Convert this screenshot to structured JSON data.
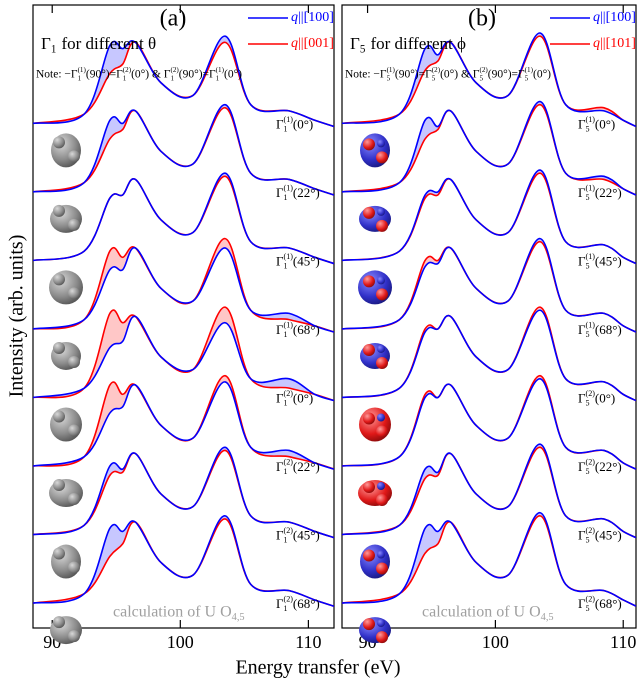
{
  "figure": {
    "ylabel": "Intensity (arb. units)",
    "xlabel": "Energy transfer (eV)"
  },
  "chart_data": [
    {
      "type": "line",
      "panel": "(a)",
      "title": {
        "symbol": "Γ",
        "sub": "1",
        "text": "for different θ"
      },
      "note": [
        "Note: −Γ",
        {
          "sub": "1",
          "sup": "(1)"
        },
        "(90°)=Γ",
        {
          "sub": "1",
          "sup": "(2)"
        },
        "(0°) & Γ",
        {
          "sub": "1",
          "sup": "(2)"
        },
        "(90°)=Γ",
        {
          "sub": "1",
          "sup": "(1)"
        },
        "(0°)"
      ],
      "legend": [
        {
          "symbol": "q",
          "direction": "||[100]",
          "color": "#0000ff"
        },
        {
          "symbol": "q",
          "direction": "||[001]",
          "color": "#ff0000"
        }
      ],
      "annotation": {
        "text": "calculation of U O",
        "sub": "4,5"
      },
      "xlim": [
        88.5,
        112
      ],
      "xticks": [
        90,
        100,
        110
      ],
      "ylim": [
        0,
        10
      ],
      "x": [
        88.5,
        92.5,
        94.5,
        95.5,
        96.5,
        98.5,
        101,
        103.5,
        105.5,
        108.5,
        110.5,
        112
      ],
      "spectra": [
        {
          "label": {
            "symbol": "Γ",
            "sub": "1",
            "sup": "(1)",
            "arg": "(0°)"
          },
          "lines": [
            [
              8.1,
              8.25,
              9.35,
              9.3,
              9.4,
              8.75,
              8.55,
              9.5,
              8.4,
              8.3,
              8.15,
              8.05
            ],
            [
              8.1,
              8.25,
              8.9,
              9.05,
              9.4,
              8.75,
              8.55,
              9.4,
              8.4,
              8.3,
              8.15,
              8.05
            ]
          ]
        },
        {
          "label": {
            "symbol": "Γ",
            "sub": "1",
            "sup": "(1)",
            "arg": "(22°)"
          },
          "lines": [
            [
              7.0,
              7.15,
              8.15,
              8.1,
              8.3,
              7.65,
              7.45,
              8.4,
              7.3,
              7.2,
              7.05,
              6.95
            ],
            [
              7.0,
              7.15,
              7.85,
              8.0,
              8.3,
              7.65,
              7.45,
              8.35,
              7.3,
              7.2,
              7.05,
              6.95
            ]
          ]
        },
        {
          "label": {
            "symbol": "Γ",
            "sub": "1",
            "sup": "(1)",
            "arg": "(45°)"
          },
          "lines": [
            [
              5.9,
              6.05,
              6.9,
              6.95,
              7.2,
              6.55,
              6.35,
              7.3,
              6.2,
              6.1,
              5.95,
              5.85
            ],
            [
              5.9,
              6.05,
              6.9,
              6.95,
              7.2,
              6.55,
              6.35,
              7.25,
              6.2,
              6.1,
              5.95,
              5.85
            ]
          ]
        },
        {
          "label": {
            "symbol": "Γ",
            "sub": "1",
            "sup": "(1)",
            "arg": "(68°)"
          },
          "lines": [
            [
              4.8,
              4.95,
              5.75,
              5.75,
              6.1,
              5.45,
              5.25,
              6.1,
              5.1,
              5.05,
              4.85,
              4.75
            ],
            [
              4.8,
              4.95,
              6.05,
              5.95,
              6.1,
              5.45,
              5.25,
              6.25,
              5.1,
              4.95,
              4.85,
              4.75
            ]
          ]
        },
        {
          "label": {
            "symbol": "Γ",
            "sub": "1",
            "sup": "(2)",
            "arg": "(0°)"
          },
          "lines": [
            [
              3.7,
              3.85,
              4.5,
              4.6,
              5.0,
              4.35,
              4.15,
              4.9,
              4.0,
              4.0,
              3.75,
              3.65
            ],
            [
              3.7,
              3.85,
              5.05,
              4.9,
              5.0,
              4.35,
              4.15,
              5.15,
              4.0,
              3.85,
              3.75,
              3.65
            ]
          ]
        },
        {
          "label": {
            "symbol": "Γ",
            "sub": "1",
            "sup": "(2)",
            "arg": "(22°)"
          },
          "lines": [
            [
              2.6,
              2.75,
              3.45,
              3.55,
              3.9,
              3.25,
              3.05,
              3.95,
              2.9,
              2.85,
              2.65,
              2.55
            ],
            [
              2.6,
              2.75,
              3.9,
              3.75,
              3.9,
              3.25,
              3.05,
              4.05,
              2.9,
              2.75,
              2.65,
              2.55
            ]
          ]
        },
        {
          "label": {
            "symbol": "Γ",
            "sub": "1",
            "sup": "(2)",
            "arg": "(45°)"
          },
          "lines": [
            [
              1.5,
              1.65,
              2.6,
              2.55,
              2.8,
              2.15,
              1.95,
              2.9,
              1.8,
              1.7,
              1.55,
              1.45
            ],
            [
              1.5,
              1.65,
              2.45,
              2.5,
              2.8,
              2.15,
              1.95,
              2.85,
              1.8,
              1.7,
              1.55,
              1.45
            ]
          ]
        },
        {
          "label": {
            "symbol": "Γ",
            "sub": "1",
            "sup": "(2)",
            "arg": "(68°)"
          },
          "lines": [
            [
              0.4,
              0.55,
              1.6,
              1.55,
              1.7,
              1.05,
              0.85,
              1.8,
              0.7,
              0.6,
              0.45,
              0.35
            ],
            [
              0.4,
              0.55,
              1.15,
              1.35,
              1.7,
              1.05,
              0.85,
              1.75,
              0.7,
              0.6,
              0.45,
              0.35
            ]
          ]
        }
      ]
    },
    {
      "type": "line",
      "panel": "(b)",
      "title": {
        "symbol": "Γ",
        "sub": "5",
        "text": "for different ϕ"
      },
      "note": [
        "Note: −Γ",
        {
          "sub": "5",
          "sup": "(1)"
        },
        "(90°)=Γ",
        {
          "sub": "5",
          "sup": "(2)"
        },
        "(0°) & Γ",
        {
          "sub": "5",
          "sup": "(2)"
        },
        "(90°)=Γ",
        {
          "sub": "5",
          "sup": "(1)"
        },
        "(0°)"
      ],
      "legend": [
        {
          "symbol": "q",
          "direction": "||[100]",
          "color": "#0000ff"
        },
        {
          "symbol": "q",
          "direction": "||[101]",
          "color": "#ff0000"
        }
      ],
      "annotation": {
        "text": "calculation of U O",
        "sub": "4,5"
      },
      "xlim": [
        88,
        111
      ],
      "xticks": [
        90,
        100,
        110
      ],
      "ylim": [
        0,
        10
      ],
      "x": [
        88,
        92.5,
        94.5,
        95.5,
        96.5,
        98.5,
        101,
        103.5,
        105.5,
        108.5,
        110,
        111
      ],
      "spectra": [
        {
          "label": {
            "symbol": "Γ",
            "sub": "5",
            "sup": "(1)",
            "arg": "(0°)"
          },
          "lines": [
            [
              8.1,
              8.25,
              9.3,
              9.2,
              9.4,
              8.75,
              8.55,
              9.55,
              8.4,
              8.3,
              8.15,
              8.05
            ],
            [
              8.1,
              8.25,
              8.95,
              9.1,
              9.4,
              8.75,
              8.55,
              9.5,
              8.4,
              8.35,
              8.15,
              8.05
            ]
          ]
        },
        {
          "label": {
            "symbol": "Γ",
            "sub": "5",
            "sup": "(1)",
            "arg": "(22°)"
          },
          "lines": [
            [
              7.0,
              7.15,
              8.15,
              8.05,
              8.3,
              7.65,
              7.45,
              8.45,
              7.3,
              7.25,
              7.05,
              6.95
            ],
            [
              7.0,
              7.15,
              7.85,
              8.0,
              8.3,
              7.65,
              7.45,
              8.4,
              7.3,
              7.2,
              7.05,
              6.95
            ]
          ]
        },
        {
          "label": {
            "symbol": "Γ",
            "sub": "5",
            "sup": "(1)",
            "arg": "(45°)"
          },
          "lines": [
            [
              5.9,
              6.05,
              6.95,
              7.0,
              7.2,
              6.55,
              6.35,
              7.35,
              6.2,
              6.15,
              5.95,
              5.85
            ],
            [
              5.9,
              6.05,
              6.9,
              6.95,
              7.2,
              6.55,
              6.35,
              7.3,
              6.2,
              6.15,
              5.95,
              5.85
            ]
          ]
        },
        {
          "label": {
            "symbol": "Γ",
            "sub": "5",
            "sup": "(1)",
            "arg": "(68°)"
          },
          "lines": [
            [
              4.8,
              4.95,
              5.8,
              5.85,
              6.1,
              5.45,
              5.25,
              6.25,
              5.1,
              5.05,
              4.85,
              4.75
            ],
            [
              4.8,
              4.95,
              5.9,
              5.9,
              6.1,
              5.45,
              5.25,
              6.2,
              5.1,
              5.05,
              4.85,
              4.75
            ]
          ]
        },
        {
          "label": {
            "symbol": "Γ",
            "sub": "5",
            "sup": "(2)",
            "arg": "(0°)"
          },
          "lines": [
            [
              3.7,
              3.85,
              4.75,
              4.8,
              5.0,
              4.35,
              4.15,
              5.1,
              4.0,
              3.95,
              3.75,
              3.65
            ],
            [
              3.7,
              3.85,
              4.8,
              4.8,
              5.0,
              4.35,
              4.15,
              5.15,
              4.0,
              3.95,
              3.75,
              3.65
            ]
          ]
        },
        {
          "label": {
            "symbol": "Γ",
            "sub": "5",
            "sup": "(2)",
            "arg": "(22°)"
          },
          "lines": [
            [
              2.6,
              2.75,
              3.7,
              3.7,
              3.9,
              3.25,
              3.05,
              4.0,
              2.9,
              2.85,
              2.65,
              2.55
            ],
            [
              2.6,
              2.75,
              3.75,
              3.7,
              3.9,
              3.25,
              3.05,
              4.05,
              2.9,
              2.85,
              2.65,
              2.55
            ]
          ]
        },
        {
          "label": {
            "symbol": "Γ",
            "sub": "5",
            "sup": "(2)",
            "arg": "(45°)"
          },
          "lines": [
            [
              1.5,
              1.65,
              2.55,
              2.5,
              2.8,
              2.15,
              1.95,
              2.95,
              1.8,
              1.75,
              1.55,
              1.45
            ],
            [
              1.5,
              1.65,
              2.4,
              2.45,
              2.8,
              2.15,
              1.95,
              2.9,
              1.8,
              1.75,
              1.55,
              1.45
            ]
          ]
        },
        {
          "label": {
            "symbol": "Γ",
            "sub": "5",
            "sup": "(2)",
            "arg": "(68°)"
          },
          "lines": [
            [
              0.4,
              0.55,
              1.6,
              1.55,
              1.7,
              1.05,
              0.85,
              1.85,
              0.7,
              0.6,
              0.45,
              0.35
            ],
            [
              0.4,
              0.55,
              1.2,
              1.35,
              1.7,
              1.05,
              0.85,
              1.8,
              0.7,
              0.6,
              0.45,
              0.35
            ]
          ]
        }
      ]
    }
  ]
}
